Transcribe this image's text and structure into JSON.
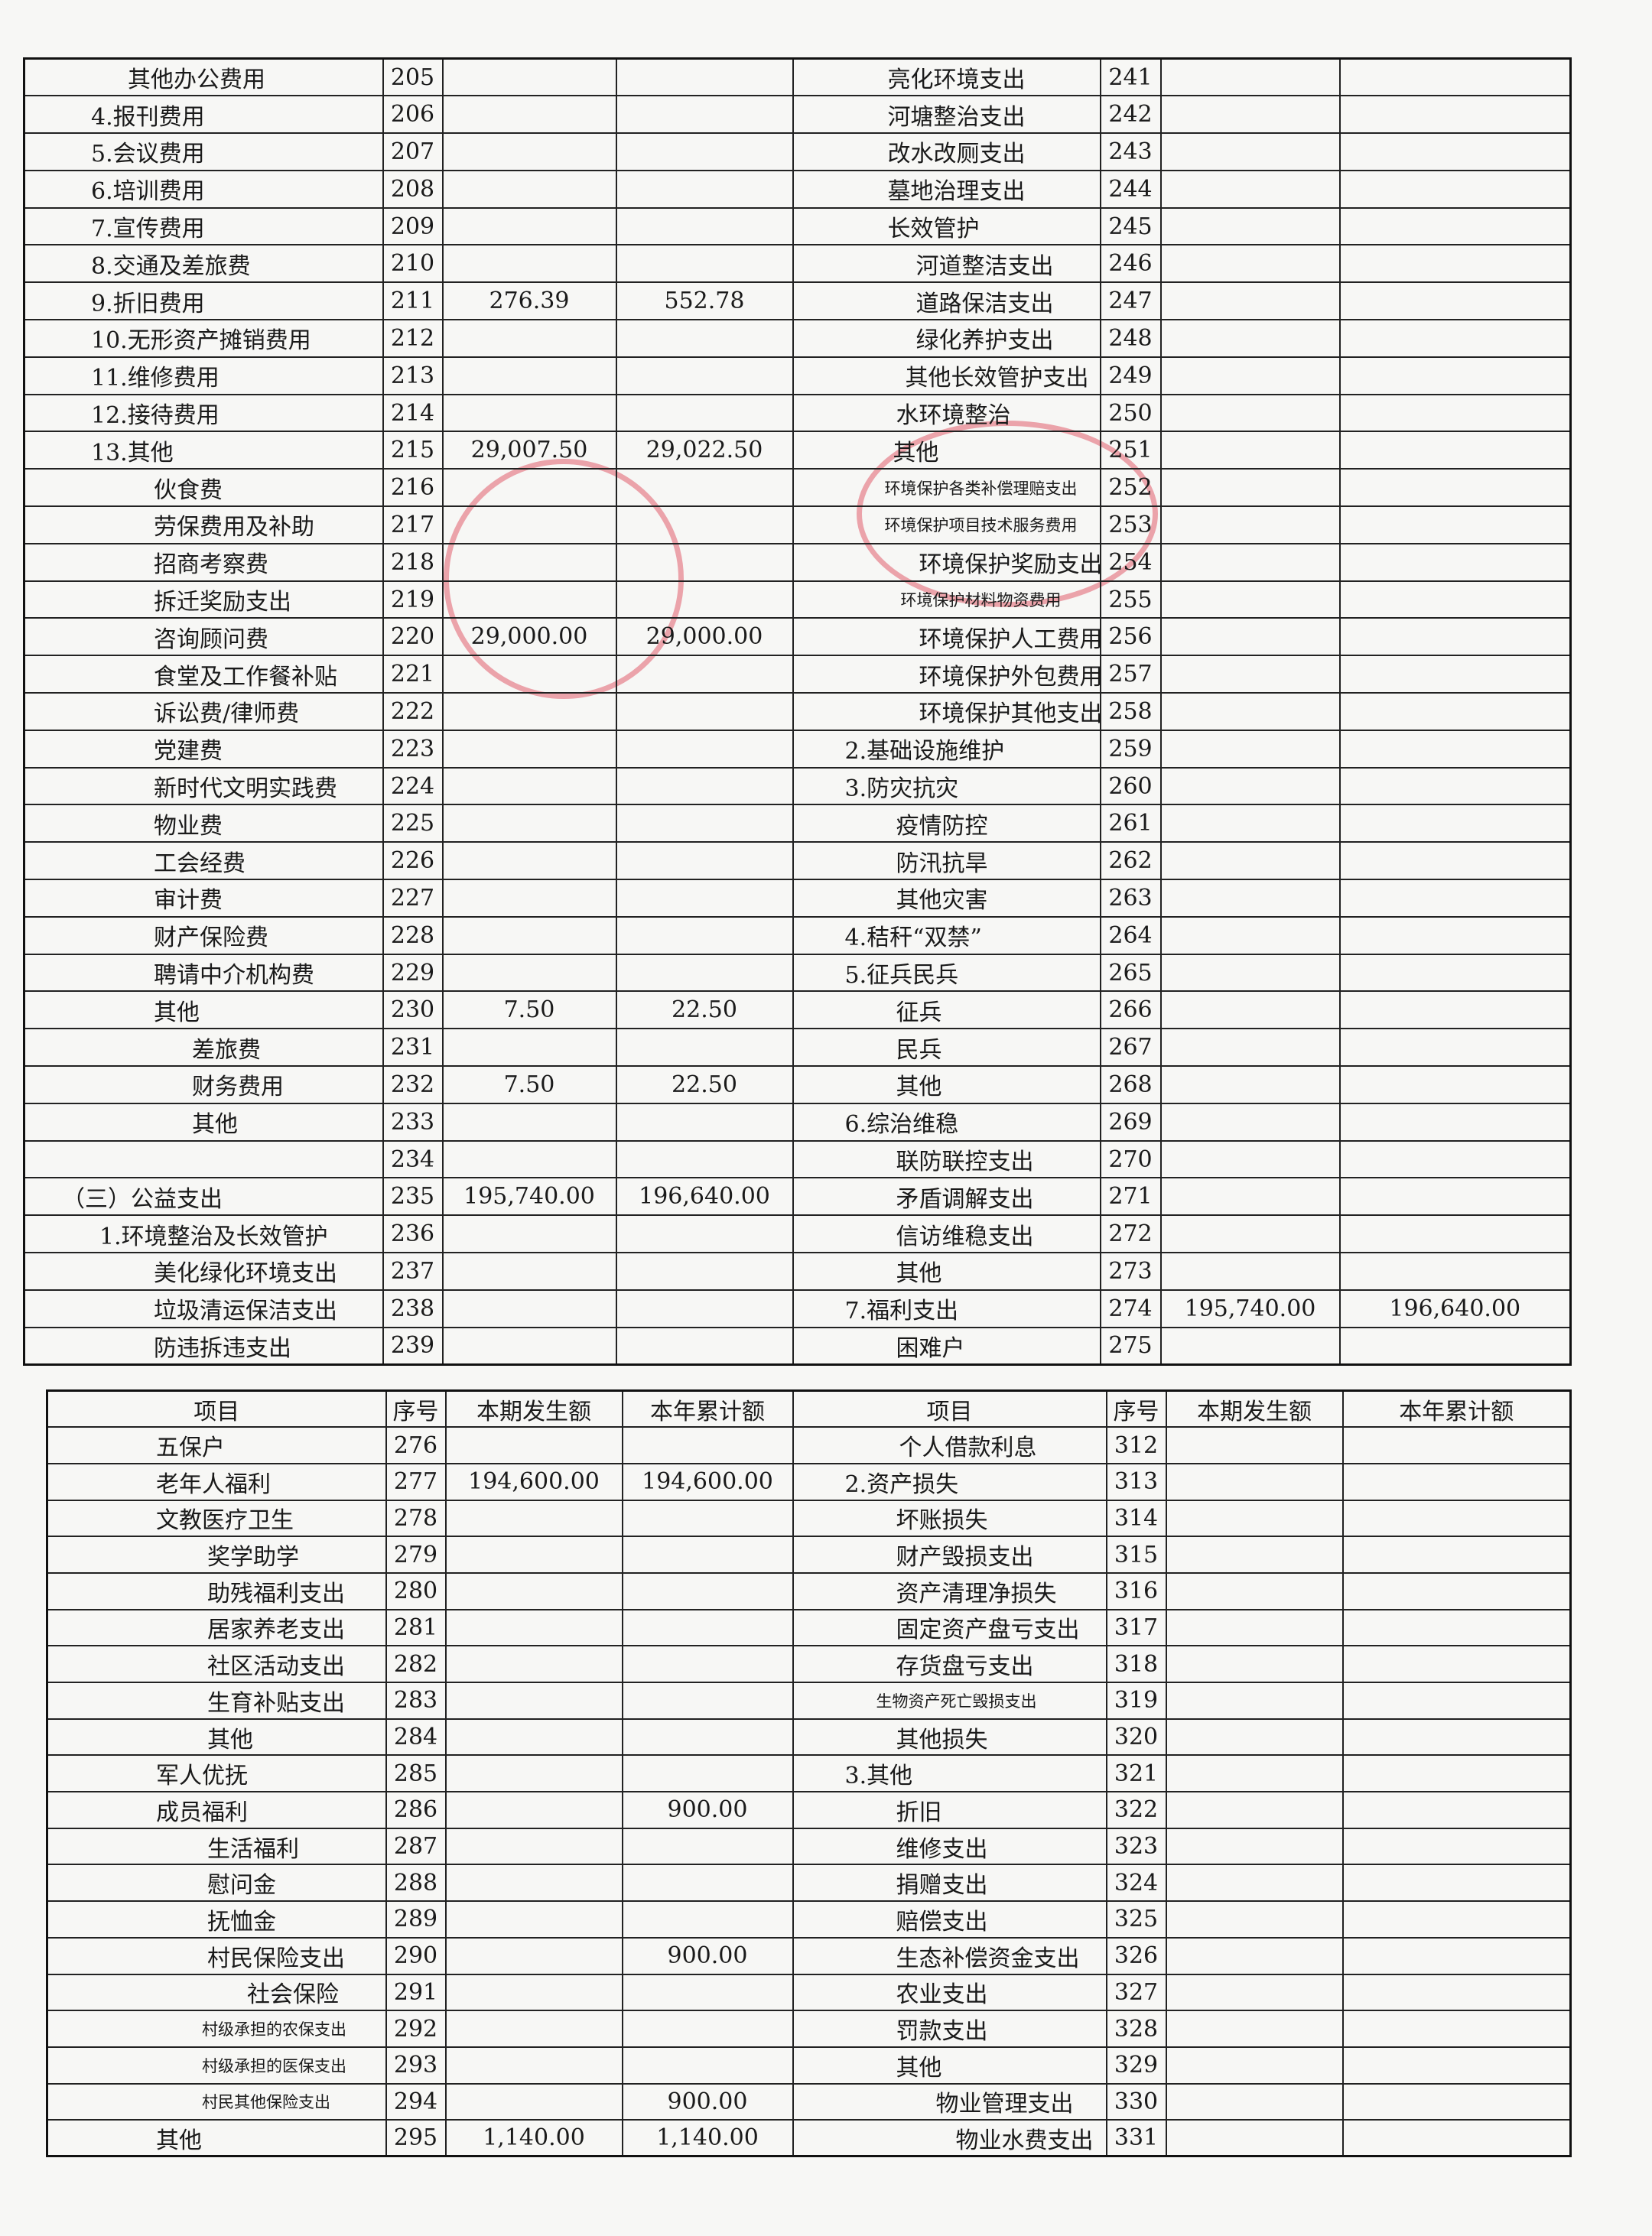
{
  "table1": {
    "rows": [
      [
        "其他办公费用",
        205,
        null,
        null,
        "亮化环境支出",
        241,
        null,
        null
      ],
      [
        "4.报刊费用",
        206,
        null,
        null,
        "河塘整治支出",
        242,
        null,
        null
      ],
      [
        "5.会议费用",
        207,
        null,
        null,
        "改水改厕支出",
        243,
        null,
        null
      ],
      [
        "6.培训费用",
        208,
        null,
        null,
        "墓地治理支出",
        244,
        null,
        null
      ],
      [
        "7.宣传费用",
        209,
        null,
        null,
        "长效管护",
        245,
        null,
        null
      ],
      [
        "8.交通及差旅费",
        210,
        null,
        null,
        "河道整洁支出",
        246,
        null,
        null
      ],
      [
        "9.折旧费用",
        211,
        "276.39",
        "552.78",
        "道路保洁支出",
        247,
        null,
        null
      ],
      [
        "10.无形资产摊销费用",
        212,
        null,
        null,
        "绿化养护支出",
        248,
        null,
        null
      ],
      [
        "11.维修费用",
        213,
        null,
        null,
        "其他长效管护支出",
        249,
        null,
        null
      ],
      [
        "12.接待费用",
        214,
        null,
        null,
        "水环境整治",
        250,
        null,
        null
      ],
      [
        "13.其他",
        215,
        "29,007.50",
        "29,022.50",
        "其他",
        251,
        null,
        null
      ],
      [
        "伙食费",
        216,
        null,
        null,
        "环境保护各类补偿理赔支出",
        252,
        null,
        null
      ],
      [
        "劳保费用及补助",
        217,
        null,
        null,
        "环境保护项目技术服务费用",
        253,
        null,
        null
      ],
      [
        "招商考察费",
        218,
        null,
        null,
        "环境保护奖励支出",
        254,
        null,
        null
      ],
      [
        "拆迁奖励支出",
        219,
        null,
        null,
        "环境保护材料物资费用",
        255,
        null,
        null
      ],
      [
        "咨询顾问费",
        220,
        "29,000.00",
        "29,000.00",
        "环境保护人工费用",
        256,
        null,
        null
      ],
      [
        "食堂及工作餐补贴",
        221,
        null,
        null,
        "环境保护外包费用",
        257,
        null,
        null
      ],
      [
        "诉讼费/律师费",
        222,
        null,
        null,
        "环境保护其他支出",
        258,
        null,
        null
      ],
      [
        "党建费",
        223,
        null,
        null,
        "2.基础设施维护",
        259,
        null,
        null
      ],
      [
        "新时代文明实践费",
        224,
        null,
        null,
        "3.防灾抗灾",
        260,
        null,
        null
      ],
      [
        "物业费",
        225,
        null,
        null,
        "疫情防控",
        261,
        null,
        null
      ],
      [
        "工会经费",
        226,
        null,
        null,
        "防汛抗旱",
        262,
        null,
        null
      ],
      [
        "审计费",
        227,
        null,
        null,
        "其他灾害",
        263,
        null,
        null
      ],
      [
        "财产保险费",
        228,
        null,
        null,
        "4.秸秆“双禁”",
        264,
        null,
        null
      ],
      [
        "聘请中介机构费",
        229,
        null,
        null,
        "5.征兵民兵",
        265,
        null,
        null
      ],
      [
        "其他",
        230,
        "7.50",
        "22.50",
        "征兵",
        266,
        null,
        null
      ],
      [
        "差旅费",
        231,
        null,
        null,
        "民兵",
        267,
        null,
        null
      ],
      [
        "财务费用",
        232,
        "7.50",
        "22.50",
        "其他",
        268,
        null,
        null
      ],
      [
        "其他",
        233,
        null,
        null,
        "6.综治维稳",
        269,
        null,
        null
      ],
      [
        null,
        234,
        null,
        null,
        "联防联控支出",
        270,
        null,
        null
      ],
      [
        "（三）公益支出",
        235,
        "195,740.00",
        "196,640.00",
        "矛盾调解支出",
        271,
        null,
        null
      ],
      [
        "1.环境整治及长效管护",
        236,
        null,
        null,
        "信访维稳支出",
        272,
        null,
        null
      ],
      [
        "美化绿化环境支出",
        237,
        null,
        null,
        "其他",
        273,
        null,
        null
      ],
      [
        "垃圾清运保洁支出",
        238,
        null,
        null,
        "7.福利支出",
        274,
        "195,740.00",
        "196,640.00"
      ],
      [
        "防违拆违支出",
        239,
        null,
        null,
        "困难户",
        275,
        null,
        null
      ]
    ]
  },
  "table2": {
    "header": [
      "项目",
      "序号",
      "本期发生额",
      "本年累计额",
      "项目",
      "序号",
      "本期发生额",
      "本年累计额"
    ],
    "rows": [
      [
        "五保户",
        276,
        null,
        null,
        "个人借款利息",
        312,
        null,
        null
      ],
      [
        "老年人福利",
        277,
        "194,600.00",
        "194,600.00",
        "2.资产损失",
        313,
        null,
        null
      ],
      [
        "文教医疗卫生",
        278,
        null,
        null,
        "坏账损失",
        314,
        null,
        null
      ],
      [
        "奖学助学",
        279,
        null,
        null,
        "财产毁损支出",
        315,
        null,
        null
      ],
      [
        "助残福利支出",
        280,
        null,
        null,
        "资产清理净损失",
        316,
        null,
        null
      ],
      [
        "居家养老支出",
        281,
        null,
        null,
        "固定资产盘亏支出",
        317,
        null,
        null
      ],
      [
        "社区活动支出",
        282,
        null,
        null,
        "存货盘亏支出",
        318,
        null,
        null
      ],
      [
        "生育补贴支出",
        283,
        null,
        null,
        "生物资产死亡毁损支出",
        319,
        null,
        null
      ],
      [
        "其他",
        284,
        null,
        null,
        "其他损失",
        320,
        null,
        null
      ],
      [
        "军人优抚",
        285,
        null,
        null,
        "3.其他",
        321,
        null,
        null
      ],
      [
        "成员福利",
        286,
        null,
        "900.00",
        "折旧",
        322,
        null,
        null
      ],
      [
        "生活福利",
        287,
        null,
        null,
        "维修支出",
        323,
        null,
        null
      ],
      [
        "慰问金",
        288,
        null,
        null,
        "捐赠支出",
        324,
        null,
        null
      ],
      [
        "抚恤金",
        289,
        null,
        null,
        "赔偿支出",
        325,
        null,
        null
      ],
      [
        "村民保险支出",
        290,
        null,
        "900.00",
        "生态补偿资金支出",
        326,
        null,
        null
      ],
      [
        "社会保险",
        291,
        null,
        null,
        "农业支出",
        327,
        null,
        null
      ],
      [
        "村级承担的农保支出",
        292,
        null,
        null,
        "罚款支出",
        328,
        null,
        null
      ],
      [
        "村级承担的医保支出",
        293,
        null,
        null,
        "其他",
        329,
        null,
        null
      ],
      [
        "村民其他保险支出",
        294,
        null,
        "900.00",
        "物业管理支出",
        330,
        null,
        null
      ],
      [
        "其他",
        295,
        "1,140.00",
        "1,140.00",
        "物业水费支出",
        331,
        null,
        null
      ]
    ]
  }
}
